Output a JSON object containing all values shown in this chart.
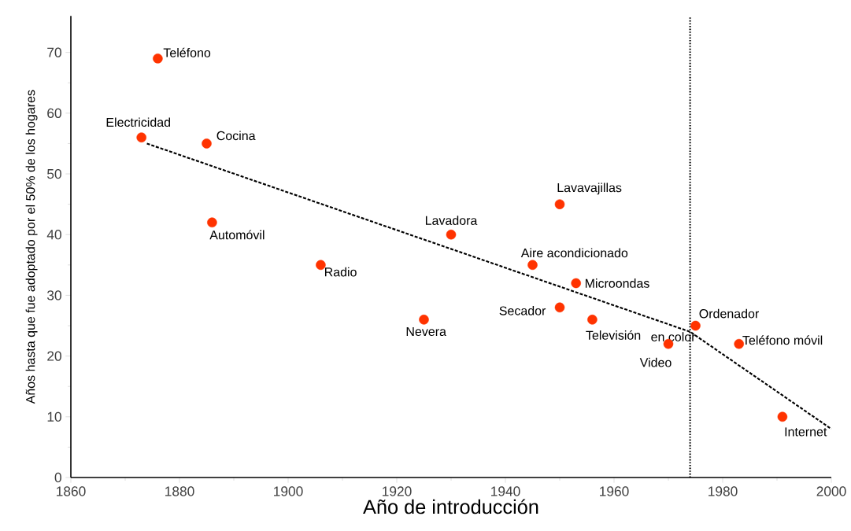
{
  "chart_data": {
    "type": "scatter",
    "xlabel": "Año de introducción",
    "ylabel": "Años hasta que fue adoptado por el 50% de los hogares",
    "xlim": [
      1860,
      2000
    ],
    "ylim": [
      0,
      76
    ],
    "xticks": [
      1860,
      1880,
      1900,
      1920,
      1940,
      1960,
      1980,
      2000
    ],
    "yticks": [
      0,
      10,
      20,
      30,
      40,
      50,
      60,
      70
    ],
    "series": [
      {
        "color": "#ff3300",
        "marker": "circle",
        "x": [
          1876,
          1873,
          1885,
          1886,
          1906,
          1925,
          1930,
          1945,
          1950,
          1953,
          1950,
          1956,
          1970,
          1975,
          1983,
          1991
        ],
        "values": [
          69,
          56,
          55,
          42,
          35,
          26,
          40,
          35,
          45,
          32,
          28,
          26,
          22,
          25,
          22,
          10
        ]
      },
      {
        "type": "line",
        "color": "#000000",
        "line_style": "dashed",
        "marker": "none",
        "x": [
          1874,
          1974,
          2000
        ],
        "values": [
          55,
          24,
          8
        ]
      }
    ],
    "ref_lines": [
      {
        "axis": "x",
        "value": 1974,
        "line_style": "dotted",
        "color": "#000000"
      }
    ],
    "annotations": [
      {
        "text": "Teléfono",
        "x": 1876,
        "y": 69
      },
      {
        "text": "Electricidad",
        "x": 1873,
        "y": 56
      },
      {
        "text": "Cocina",
        "x": 1885,
        "y": 55
      },
      {
        "text": "Automóvil",
        "x": 1886,
        "y": 42
      },
      {
        "text": "Radio",
        "x": 1906,
        "y": 35
      },
      {
        "text": "Nevera",
        "x": 1925,
        "y": 26
      },
      {
        "text": "Lavadora",
        "x": 1930,
        "y": 40
      },
      {
        "text": "Aire acondicionado",
        "x": 1945,
        "y": 35
      },
      {
        "text": "Lavavajillas",
        "x": 1950,
        "y": 45
      },
      {
        "text": "Microondas",
        "x": 1953,
        "y": 32
      },
      {
        "text": "Secador",
        "x": 1950,
        "y": 28
      },
      {
        "text": "Televisión",
        "x": 1956,
        "y": 26
      },
      "en color",
      {
        "text": "Video",
        "x": 1970,
        "y": 22
      },
      {
        "text": "Ordenador",
        "x": 1975,
        "y": 25
      },
      {
        "text": "Teléfono móvil",
        "x": 1983,
        "y": 22
      },
      {
        "text": "Internet",
        "x": 1991,
        "y": 10
      }
    ]
  }
}
